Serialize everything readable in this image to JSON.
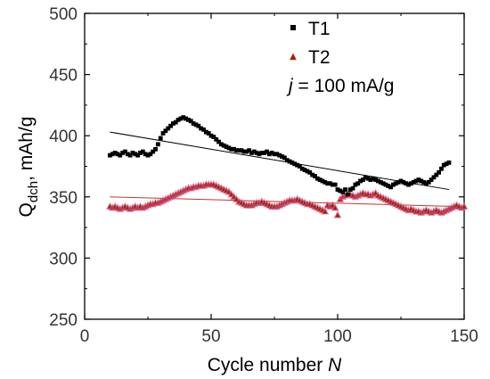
{
  "chart_data": {
    "type": "scatter",
    "title": "",
    "xlabel": "Cycle number",
    "xlabel_var": "N",
    "ylabel_main": "Q",
    "ylabel_sub": "dch",
    "ylabel_unit": ", mAh/g",
    "xlim": [
      0,
      150
    ],
    "ylim": [
      250,
      500
    ],
    "xticks": [
      "0",
      "50",
      "100",
      "150"
    ],
    "yticks": [
      "250",
      "300",
      "350",
      "400",
      "450",
      "500"
    ],
    "legend_position": "top-right",
    "annotation_var": "j",
    "annotation_rest": " = 100 mA/g",
    "series": [
      {
        "name": "T1",
        "marker": "square",
        "color": "#000000",
        "x": [
          10,
          11,
          12,
          13,
          14,
          15,
          16,
          17,
          18,
          19,
          20,
          21,
          22,
          23,
          24,
          25,
          26,
          27,
          28,
          29,
          30,
          31,
          32,
          33,
          34,
          35,
          36,
          37,
          38,
          39,
          40,
          41,
          42,
          43,
          44,
          45,
          46,
          47,
          48,
          49,
          50,
          51,
          52,
          53,
          54,
          55,
          56,
          57,
          58,
          59,
          60,
          61,
          62,
          63,
          64,
          65,
          66,
          67,
          68,
          69,
          70,
          71,
          72,
          73,
          74,
          75,
          76,
          77,
          78,
          79,
          80,
          81,
          82,
          83,
          84,
          85,
          86,
          87,
          88,
          89,
          90,
          91,
          92,
          93,
          94,
          95,
          96,
          97,
          98,
          99,
          100,
          101,
          102,
          103,
          104,
          105,
          106,
          107,
          108,
          109,
          110,
          111,
          112,
          113,
          114,
          115,
          116,
          117,
          118,
          119,
          120,
          121,
          122,
          123,
          124,
          125,
          126,
          127,
          128,
          129,
          130,
          131,
          132,
          133,
          134,
          135,
          136,
          137,
          138,
          139,
          140,
          141,
          142,
          143,
          144
        ],
        "y": [
          384,
          385,
          386,
          385,
          384,
          386,
          387,
          385,
          384,
          386,
          385,
          384,
          386,
          387,
          385,
          384,
          385,
          387,
          389,
          393,
          398,
          402,
          404,
          406,
          408,
          410,
          411,
          413,
          414,
          415,
          414,
          413,
          412,
          410,
          409,
          408,
          406,
          405,
          403,
          402,
          400,
          399,
          397,
          395,
          393,
          392,
          391,
          390,
          389,
          389,
          388,
          388,
          388,
          387,
          387,
          388,
          386,
          387,
          386,
          385,
          386,
          386,
          387,
          385,
          386,
          385,
          385,
          384,
          383,
          382,
          380,
          379,
          378,
          377,
          376,
          375,
          373,
          372,
          371,
          370,
          368,
          367,
          365,
          364,
          363,
          362,
          361,
          361,
          360,
          360,
          356,
          355,
          354,
          356,
          352,
          356,
          357,
          360,
          361,
          363,
          364,
          366,
          365,
          364,
          365,
          364,
          363,
          362,
          361,
          360,
          359,
          358,
          360,
          361,
          362,
          363,
          362,
          361,
          360,
          361,
          362,
          363,
          364,
          363,
          362,
          361,
          362,
          364,
          366,
          368,
          370,
          373,
          376,
          377,
          378
        ],
        "trend": [
          [
            10,
            403
          ],
          [
            144,
            356
          ]
        ]
      },
      {
        "name": "T2",
        "marker": "triangle",
        "color": "#8b2a00",
        "x": [
          10,
          11,
          12,
          13,
          14,
          15,
          16,
          17,
          18,
          19,
          20,
          21,
          22,
          23,
          24,
          25,
          26,
          27,
          28,
          29,
          30,
          31,
          32,
          33,
          34,
          35,
          36,
          37,
          38,
          39,
          40,
          41,
          42,
          43,
          44,
          45,
          46,
          47,
          48,
          49,
          50,
          51,
          52,
          53,
          54,
          55,
          56,
          57,
          58,
          59,
          60,
          61,
          62,
          63,
          64,
          65,
          66,
          67,
          68,
          69,
          70,
          71,
          72,
          73,
          74,
          75,
          76,
          77,
          78,
          79,
          80,
          81,
          82,
          83,
          84,
          85,
          86,
          87,
          88,
          89,
          90,
          91,
          92,
          93,
          94,
          95,
          96,
          97,
          98,
          99,
          100,
          101,
          102,
          103,
          104,
          105,
          106,
          107,
          108,
          109,
          110,
          111,
          112,
          113,
          114,
          115,
          116,
          117,
          118,
          119,
          120,
          121,
          122,
          123,
          124,
          125,
          126,
          127,
          128,
          129,
          130,
          131,
          132,
          133,
          134,
          135,
          136,
          137,
          138,
          139,
          140,
          141,
          142,
          143,
          144,
          145,
          146,
          147,
          148,
          149,
          150
        ],
        "y": [
          342,
          341,
          342,
          341,
          340,
          341,
          342,
          341,
          340,
          341,
          342,
          341,
          342,
          341,
          342,
          343,
          344,
          344,
          345,
          345,
          346,
          347,
          348,
          349,
          350,
          351,
          352,
          353,
          354,
          355,
          356,
          357,
          357,
          358,
          358,
          359,
          359,
          359,
          360,
          360,
          360,
          360,
          359,
          358,
          357,
          356,
          355,
          354,
          352,
          350,
          348,
          346,
          345,
          344,
          343,
          343,
          343,
          344,
          345,
          345,
          346,
          345,
          344,
          343,
          342,
          342,
          342,
          343,
          344,
          345,
          346,
          347,
          347,
          347,
          348,
          347,
          346,
          345,
          344,
          344,
          343,
          342,
          341,
          340,
          339,
          338,
          343,
          342,
          343,
          341,
          335,
          348,
          350,
          351,
          352,
          352,
          351,
          350,
          351,
          352,
          353,
          352,
          352,
          351,
          352,
          353,
          351,
          350,
          349,
          348,
          347,
          346,
          345,
          344,
          343,
          342,
          341,
          340,
          339,
          340,
          339,
          338,
          338,
          337,
          338,
          339,
          338,
          337,
          338,
          339,
          338,
          337,
          338,
          339,
          340,
          341,
          342,
          343,
          342,
          341,
          342
        ],
        "trend": [
          [
            10,
            350
          ],
          [
            150,
            342
          ]
        ]
      }
    ]
  }
}
